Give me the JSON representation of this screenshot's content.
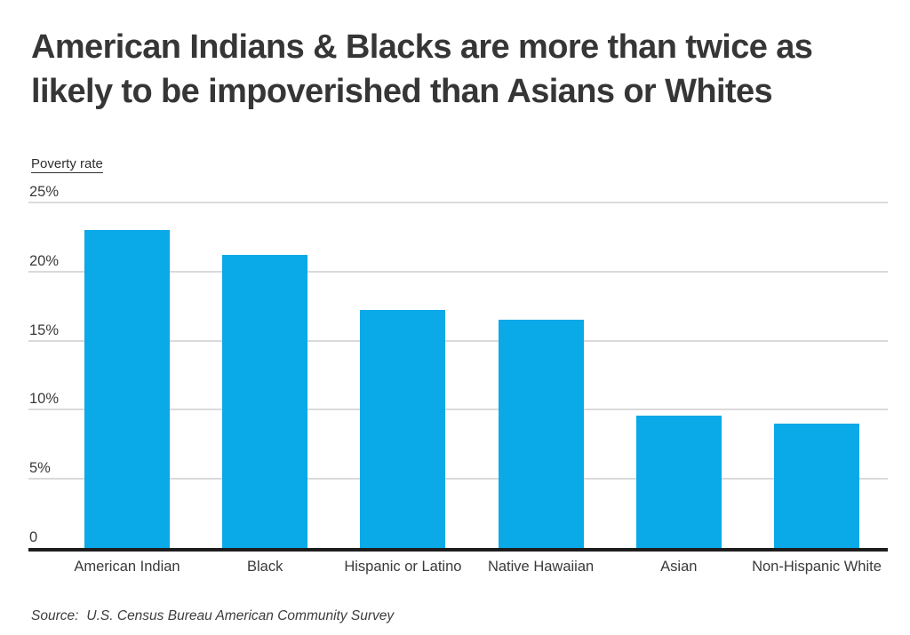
{
  "header": {
    "title_line1": "American Indians & Blacks are more than twice as",
    "title_line2": "likely to be impoverished than Asians or Whites"
  },
  "chart_data": {
    "type": "bar",
    "title": "American Indians & Blacks are more than twice as likely to be impoverished than Asians or Whites",
    "ylabel": "Poverty rate",
    "xlabel": "",
    "categories": [
      "American Indian",
      "Black",
      "Hispanic or Latino",
      "Native Hawaiian",
      "Asian",
      "Non-Hispanic White"
    ],
    "values": [
      23.0,
      21.2,
      17.2,
      16.5,
      9.6,
      9.0
    ],
    "value_unit": "percent",
    "ylim": [
      0,
      25
    ],
    "yticks": [
      {
        "value": 25,
        "label": "25%"
      },
      {
        "value": 20,
        "label": "20%"
      },
      {
        "value": 15,
        "label": "15%"
      },
      {
        "value": 10,
        "label": "10%"
      },
      {
        "value": 5,
        "label": "5%"
      },
      {
        "value": 0,
        "label": "0"
      }
    ],
    "grid": true,
    "legend_position": "none",
    "bar_color": "#0aa9e8"
  },
  "colors": {
    "bar": "#0aa9e8",
    "gridline": "#dadada",
    "axis": "#1d1d1d",
    "title_text": "#363636",
    "label_text": "#3a3a3a",
    "background": "#ffffff"
  },
  "footer": {
    "source_label": "Source:",
    "source_text": "U.S. Census Bureau American Community Survey"
  }
}
